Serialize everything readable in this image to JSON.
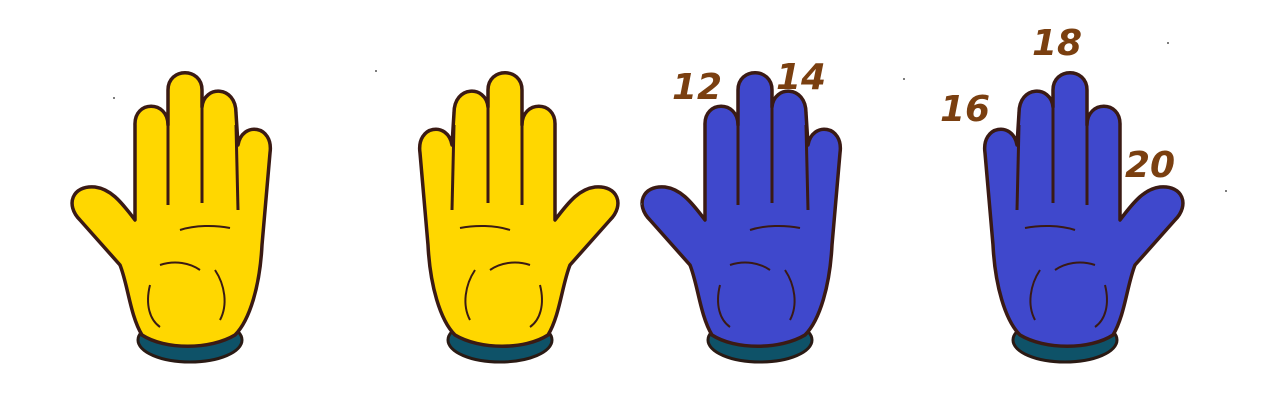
{
  "colors": {
    "yellow_hand": "#FFD700",
    "blue_hand": "#3F48CC",
    "outline": "#3a1a14",
    "cuff": "#0e5268",
    "label": "#7a3f10"
  },
  "hands": [
    {
      "color": "yellow",
      "icon": "open-hand-icon"
    },
    {
      "color": "yellow",
      "icon": "open-hand-icon"
    },
    {
      "color": "blue",
      "icon": "open-hand-icon"
    },
    {
      "color": "blue",
      "icon": "open-hand-icon"
    }
  ],
  "labels": {
    "n12": "12",
    "n14": "14",
    "n16": "16",
    "n18": "18",
    "n20": "20"
  }
}
